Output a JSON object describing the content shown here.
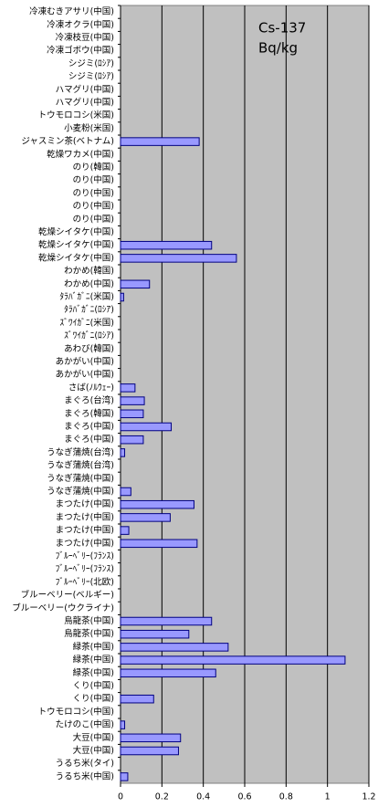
{
  "chart_data": {
    "type": "bar",
    "orientation": "horizontal",
    "annotations": [
      "Cs-137",
      "Bq/kg"
    ],
    "categories": [
      "冷凍むきアサリ(中国)",
      "冷凍オクラ(中国)",
      "冷凍枝豆(中国)",
      "冷凍ゴボウ(中国)",
      "シジミ(ﾛｼｱ)",
      "シジミ(ﾛｼｱ)",
      "ハマグリ(中国)",
      "ハマグリ(中国)",
      "トウモロコシ(米国)",
      "小麦粉(米国)",
      "ジャスミン茶(ベトナム)",
      "乾燥ワカメ(中国)",
      "のり(韓国)",
      "のり(中国)",
      "のり(中国)",
      "のり(中国)",
      "のり(中国)",
      "乾燥シイタケ(中国)",
      "乾燥シイタケ(中国)",
      "乾燥シイタケ(中国)",
      "わかめ(韓国)",
      "わかめ(中国)",
      "ﾀﾗﾊﾞｶﾞﾆ(米国)",
      "ﾀﾗﾊﾞｶﾞﾆ(ﾛｼｱ)",
      "ｽﾞﾜｲｶﾞﾆ(米国)",
      "ｽﾞﾜｲｶﾞﾆ(ﾛｼｱ)",
      "あわび(韓国)",
      "あかがい(中国)",
      "あかがい(中国)",
      "さば(ﾉﾙｳｪｰ)",
      "まぐろ(台湾)",
      "まぐろ(韓国)",
      "まぐろ(中国)",
      "まぐろ(中国)",
      "うなぎ蒲焼(台湾)",
      "うなぎ蒲焼(台湾)",
      "うなぎ蒲焼(中国)",
      "うなぎ蒲焼(中国)",
      "まつたけ(中国)",
      "まつたけ(中国)",
      "まつたけ(中国)",
      "まつたけ(中国)",
      "ﾌﾞﾙｰﾍﾞﾘｰ(ﾌﾗﾝｽ)",
      "ﾌﾞﾙｰﾍﾞﾘｰ(ﾌﾗﾝｽ)",
      "ﾌﾞﾙｰﾍﾞﾘｰ(北欧)",
      "ブルーベリー(ベルギー)",
      "ブルーベリー(ウクライナ)",
      "烏龍茶(中国)",
      "烏龍茶(中国)",
      "緑茶(中国)",
      "緑茶(中国)",
      "緑茶(中国)",
      "くり(中国)",
      "くり(中国)",
      "トウモロコシ(中国)",
      "たけのこ(中国)",
      "大豆(中国)",
      "大豆(中国)",
      "うるち米(タイ)",
      "うるち米(中国)"
    ],
    "values": [
      0,
      0,
      0,
      0,
      0,
      0,
      0,
      0,
      0,
      0,
      0.38,
      0,
      0,
      0,
      0,
      0,
      0,
      0,
      0.44,
      0.56,
      0,
      0.14,
      0.015,
      0,
      0,
      0,
      0,
      0,
      0,
      0.07,
      0.115,
      0.11,
      0.245,
      0.11,
      0.02,
      0,
      0,
      0.05,
      0.355,
      0.24,
      0.04,
      0.37,
      0,
      0,
      0,
      0,
      0,
      0.44,
      0.33,
      0.52,
      1.085,
      0.46,
      0,
      0.16,
      0,
      0.02,
      0.29,
      0.28,
      0,
      0.035
    ],
    "color": "#9999ff",
    "xlim": [
      0,
      1.2
    ],
    "xticks": [
      0,
      0.2,
      0.4,
      0.6,
      0.8,
      1,
      1.2
    ],
    "grid": true
  }
}
